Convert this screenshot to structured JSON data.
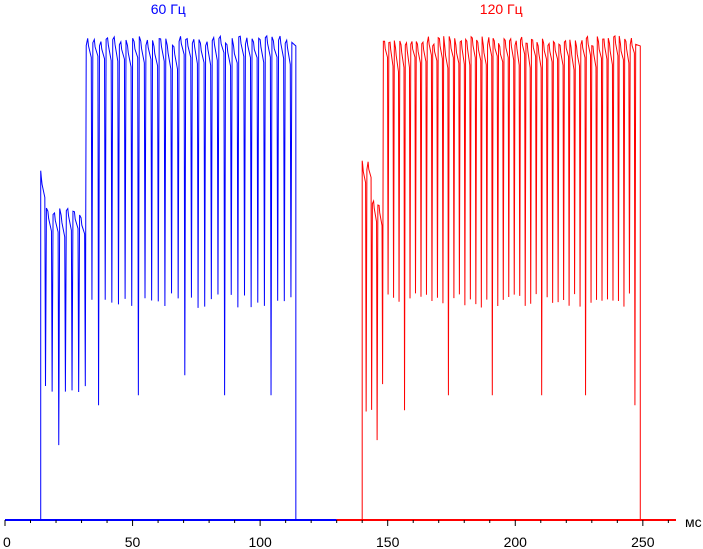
{
  "chart_data": {
    "type": "line",
    "title": "",
    "xlabel": "мс",
    "ylabel": "",
    "xlim": [
      0,
      263
    ],
    "ylim": [
      0,
      100
    ],
    "x_ticks": [
      0,
      50,
      100,
      150,
      200,
      250
    ],
    "grid": false,
    "legend": "none",
    "series": [
      {
        "name": "60 Гц",
        "color": "#0000ff",
        "x_range": [
          0,
          130
        ],
        "on_start": 14,
        "on_end": 114,
        "period": 2.6,
        "phases": [
          {
            "from": 14,
            "to": 16,
            "top": 70,
            "bottom": 28
          },
          {
            "from": 16,
            "to": 31,
            "top": 63,
            "bottom": 27
          },
          {
            "from": 31,
            "to": 114,
            "top": 97,
            "bottom": 44
          }
        ],
        "deep_dips": [
          {
            "x": 20,
            "y": 15
          },
          {
            "x": 36,
            "y": 23
          },
          {
            "x": 53,
            "y": 25
          },
          {
            "x": 70,
            "y": 29
          },
          {
            "x": 87,
            "y": 25
          },
          {
            "x": 104,
            "y": 25
          }
        ]
      },
      {
        "name": "120 Гц",
        "color": "#ff0000",
        "x_range": [
          130,
          263
        ],
        "on_start": 140,
        "on_end": 249,
        "period": 2.15,
        "phases": [
          {
            "from": 140,
            "to": 143,
            "top": 72,
            "bottom": 23
          },
          {
            "from": 143,
            "to": 148,
            "top": 64,
            "bottom": 26
          },
          {
            "from": 148,
            "to": 249,
            "top": 97,
            "bottom": 44
          }
        ],
        "deep_dips": [
          {
            "x": 145,
            "y": 16
          },
          {
            "x": 156,
            "y": 22
          },
          {
            "x": 174,
            "y": 25
          },
          {
            "x": 192,
            "y": 25
          },
          {
            "x": 210,
            "y": 25
          },
          {
            "x": 228,
            "y": 25
          },
          {
            "x": 246,
            "y": 23
          }
        ]
      }
    ]
  }
}
